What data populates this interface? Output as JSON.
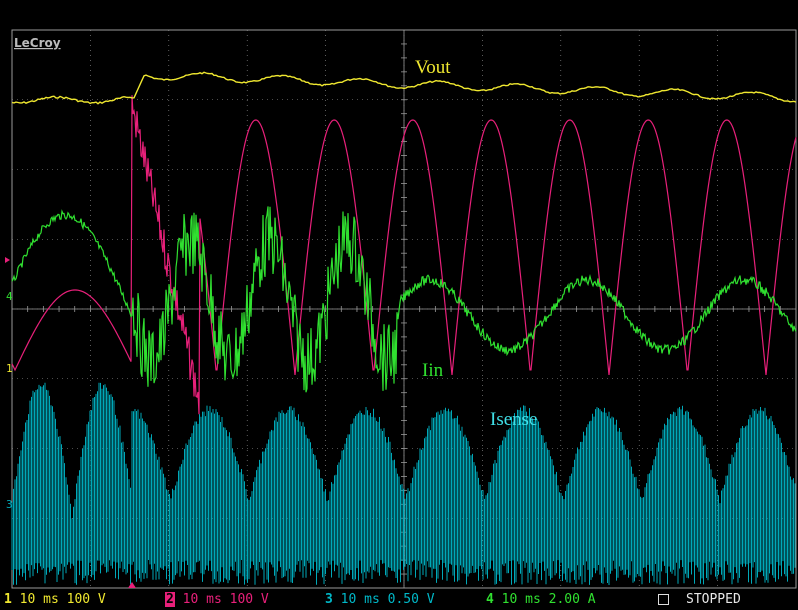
{
  "brand": "LeCroy",
  "labels": {
    "vout": "Vout",
    "iin": "Iin",
    "isense": "Isense"
  },
  "colors": {
    "ch1": "#f0e830",
    "ch2": "#e8207a",
    "ch3": "#00a8b8",
    "ch4": "#30e030",
    "grid": "#9a9a9a",
    "background": "#000000"
  },
  "channels": [
    {
      "num": "1",
      "timebase": "10 ms",
      "scale": "100 V"
    },
    {
      "num": "2",
      "timebase": "10 ms",
      "scale": "100 V"
    },
    {
      "num": "3",
      "timebase": "10 ms",
      "scale": "0.50 V"
    },
    {
      "num": "4",
      "timebase": "10 ms",
      "scale": "2.00 A"
    }
  ],
  "status": "STOPPED",
  "markers": {
    "ch4": "4",
    "ch1": "1",
    "ch3": "3"
  }
}
